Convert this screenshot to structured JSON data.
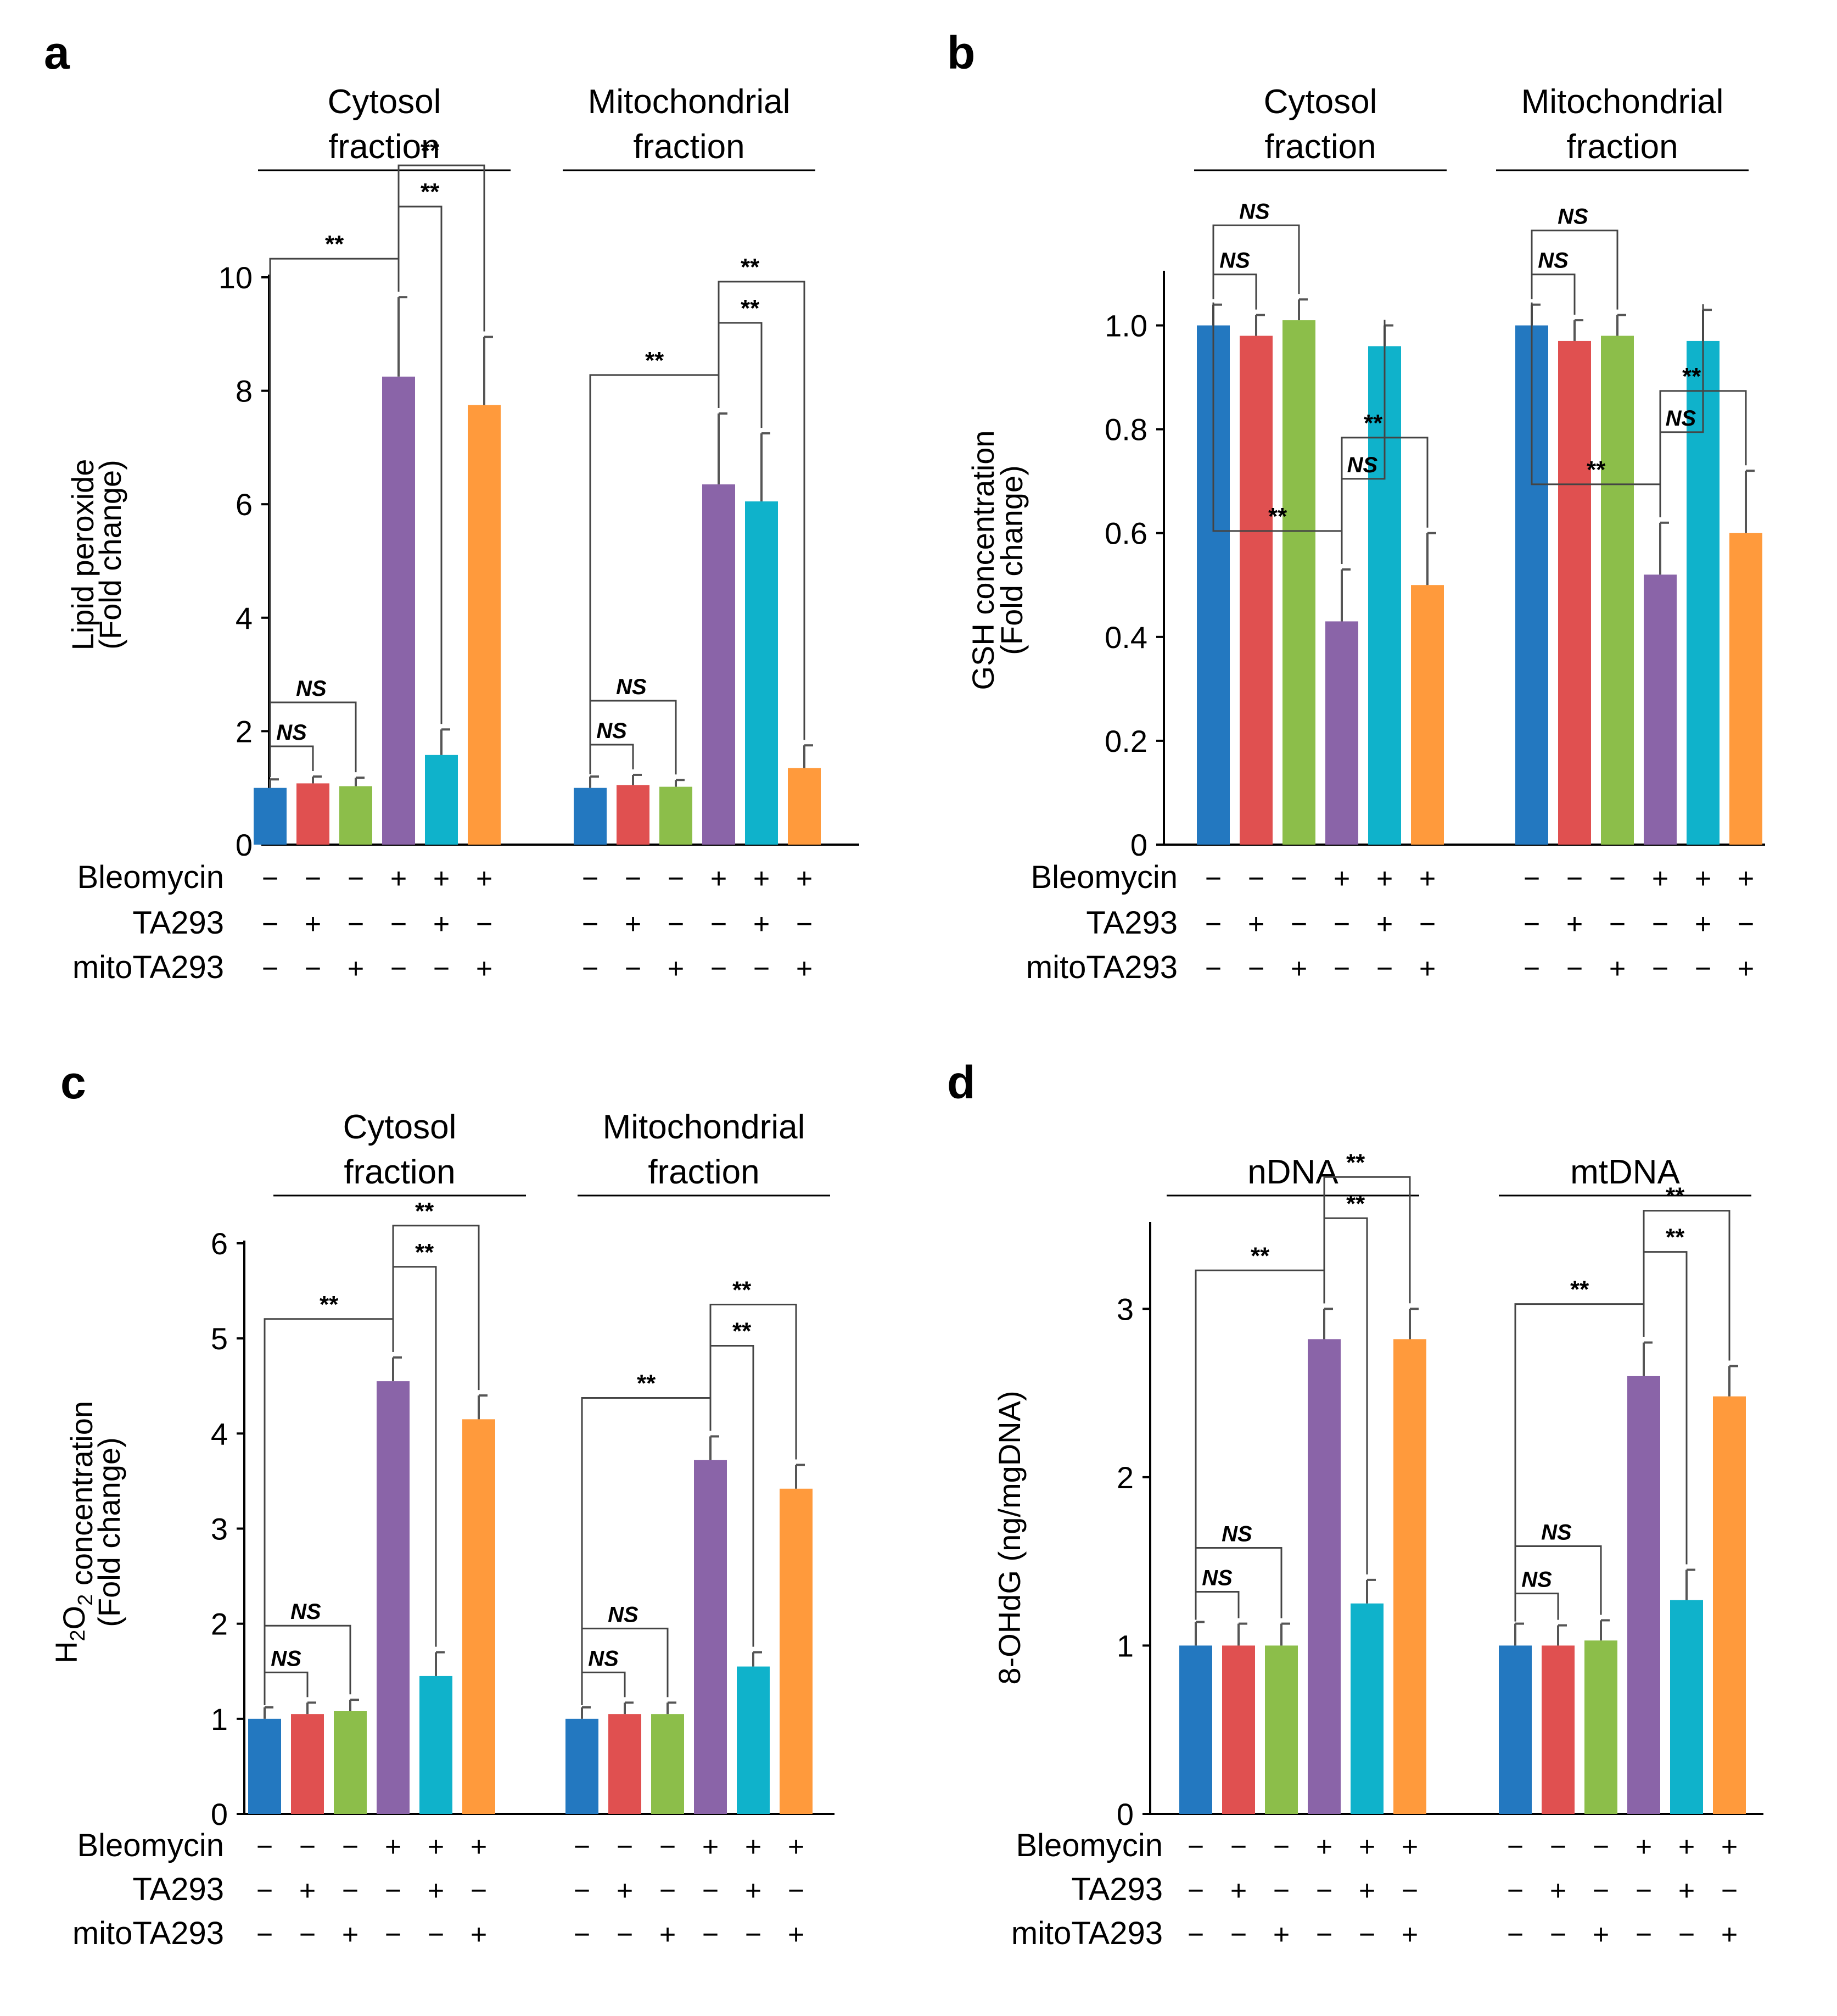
{
  "colors": [
    "#2378c0",
    "#e05050",
    "#8cbe4a",
    "#8a64a8",
    "#0fb2cb",
    "#ff9a3c"
  ],
  "row_labels": [
    "Bleomycin",
    "TA293",
    "mitoTA293"
  ],
  "treatment_signs": [
    [
      "−",
      "−",
      "−",
      "+",
      "+",
      "+"
    ],
    [
      "−",
      "+",
      "−",
      "−",
      "+",
      "−"
    ],
    [
      "−",
      "−",
      "+",
      "−",
      "−",
      "+"
    ]
  ],
  "chart_data": [
    {
      "panel": "a",
      "type": "bar",
      "ylabel_lines": [
        "Lipid peroxide",
        "(Fold change)"
      ],
      "ylim": [
        0,
        10
      ],
      "yticks": [
        "0",
        "2",
        "4",
        "6",
        "8",
        "10"
      ],
      "groups": [
        {
          "title_lines": [
            "Cytosol",
            "fraction"
          ],
          "values": [
            1.0,
            1.08,
            1.03,
            8.25,
            1.58,
            7.75
          ],
          "errors": [
            0.15,
            0.12,
            0.15,
            1.4,
            0.45,
            1.2
          ],
          "brackets": [
            {
              "from": 0,
              "to": 1,
              "label": "NS"
            },
            {
              "from": 0,
              "to": 2,
              "label": "NS"
            },
            {
              "from": 0,
              "to": 3,
              "label": "**"
            },
            {
              "from": 3,
              "to": 4,
              "label": "**"
            },
            {
              "from": 3,
              "to": 5,
              "label": "**"
            }
          ]
        },
        {
          "title_lines": [
            "Mitochondrial",
            "fraction"
          ],
          "values": [
            1.0,
            1.05,
            1.02,
            6.35,
            6.05,
            1.35
          ],
          "errors": [
            0.2,
            0.18,
            0.12,
            1.25,
            1.2,
            0.4
          ],
          "brackets": [
            {
              "from": 0,
              "to": 1,
              "label": "NS"
            },
            {
              "from": 0,
              "to": 2,
              "label": "NS"
            },
            {
              "from": 0,
              "to": 3,
              "label": "**"
            },
            {
              "from": 3,
              "to": 4,
              "label": "**"
            },
            {
              "from": 3,
              "to": 5,
              "label": "**"
            }
          ]
        }
      ]
    },
    {
      "panel": "b",
      "type": "bar",
      "ylabel_lines": [
        "GSH concentration",
        "(Fold change)"
      ],
      "ylim": [
        0,
        1.1
      ],
      "yticks": [
        "0",
        "0.2",
        "0.4",
        "0.6",
        "0.8",
        "1.0"
      ],
      "groups": [
        {
          "title_lines": [
            "Cytosol",
            "fraction"
          ],
          "values": [
            1.0,
            0.98,
            1.01,
            0.43,
            0.96,
            0.5
          ],
          "errors": [
            0.04,
            0.04,
            0.04,
            0.1,
            0.04,
            0.1
          ],
          "brackets": [
            {
              "from": 0,
              "to": 1,
              "label": "NS"
            },
            {
              "from": 0,
              "to": 2,
              "label": "NS"
            },
            {
              "from": 0,
              "to": 3,
              "label": "**"
            },
            {
              "from": 3,
              "to": 4,
              "label": "NS"
            },
            {
              "from": 3,
              "to": 5,
              "label": "**"
            }
          ]
        },
        {
          "title_lines": [
            "Mitochondrial",
            "fraction"
          ],
          "values": [
            1.0,
            0.97,
            0.98,
            0.52,
            0.97,
            0.6
          ],
          "errors": [
            0.04,
            0.04,
            0.04,
            0.1,
            0.06,
            0.12
          ],
          "brackets": [
            {
              "from": 0,
              "to": 1,
              "label": "NS"
            },
            {
              "from": 0,
              "to": 2,
              "label": "NS"
            },
            {
              "from": 0,
              "to": 3,
              "label": "**"
            },
            {
              "from": 3,
              "to": 4,
              "label": "NS"
            },
            {
              "from": 3,
              "to": 5,
              "label": "**"
            }
          ]
        }
      ]
    },
    {
      "panel": "c",
      "type": "bar",
      "ylabel_lines": [
        "H2O2 concentration",
        "(Fold change)"
      ],
      "ylim": [
        0,
        6
      ],
      "yticks": [
        "0",
        "1",
        "2",
        "3",
        "4",
        "5",
        "6"
      ],
      "groups": [
        {
          "title_lines": [
            "Cytosol",
            "fraction"
          ],
          "values": [
            1.0,
            1.05,
            1.08,
            4.55,
            1.45,
            4.15
          ],
          "errors": [
            0.12,
            0.12,
            0.12,
            0.25,
            0.25,
            0.25
          ],
          "brackets": [
            {
              "from": 0,
              "to": 1,
              "label": "NS"
            },
            {
              "from": 0,
              "to": 2,
              "label": "NS"
            },
            {
              "from": 0,
              "to": 3,
              "label": "**"
            },
            {
              "from": 3,
              "to": 4,
              "label": "**"
            },
            {
              "from": 3,
              "to": 5,
              "label": "**"
            }
          ]
        },
        {
          "title_lines": [
            "Mitochondrial",
            "fraction"
          ],
          "values": [
            1.0,
            1.05,
            1.05,
            3.72,
            1.55,
            3.42
          ],
          "errors": [
            0.12,
            0.12,
            0.12,
            0.25,
            0.15,
            0.25
          ],
          "brackets": [
            {
              "from": 0,
              "to": 1,
              "label": "NS"
            },
            {
              "from": 0,
              "to": 2,
              "label": "NS"
            },
            {
              "from": 0,
              "to": 3,
              "label": "**"
            },
            {
              "from": 3,
              "to": 4,
              "label": "**"
            },
            {
              "from": 3,
              "to": 5,
              "label": "**"
            }
          ]
        }
      ]
    },
    {
      "panel": "d",
      "type": "bar",
      "ylabel_lines": [
        "8-OHdG (ng/mgDNA)"
      ],
      "ylim": [
        0,
        3.5
      ],
      "yticks": [
        "0",
        "1",
        "2",
        "3"
      ],
      "groups": [
        {
          "title_lines": [
            "nDNA"
          ],
          "values": [
            1.0,
            1.0,
            1.0,
            2.82,
            1.25,
            2.82
          ],
          "errors": [
            0.14,
            0.13,
            0.13,
            0.18,
            0.14,
            0.18
          ],
          "brackets": [
            {
              "from": 0,
              "to": 1,
              "label": "NS"
            },
            {
              "from": 0,
              "to": 2,
              "label": "NS"
            },
            {
              "from": 0,
              "to": 3,
              "label": "**"
            },
            {
              "from": 3,
              "to": 4,
              "label": "**"
            },
            {
              "from": 3,
              "to": 5,
              "label": "**"
            }
          ]
        },
        {
          "title_lines": [
            "mtDNA"
          ],
          "values": [
            1.0,
            1.0,
            1.03,
            2.6,
            1.27,
            2.48
          ],
          "errors": [
            0.13,
            0.12,
            0.12,
            0.2,
            0.18,
            0.18
          ],
          "brackets": [
            {
              "from": 0,
              "to": 1,
              "label": "NS"
            },
            {
              "from": 0,
              "to": 2,
              "label": "NS"
            },
            {
              "from": 0,
              "to": 3,
              "label": "**"
            },
            {
              "from": 3,
              "to": 4,
              "label": "**"
            },
            {
              "from": 3,
              "to": 5,
              "label": "**"
            }
          ]
        }
      ]
    }
  ]
}
